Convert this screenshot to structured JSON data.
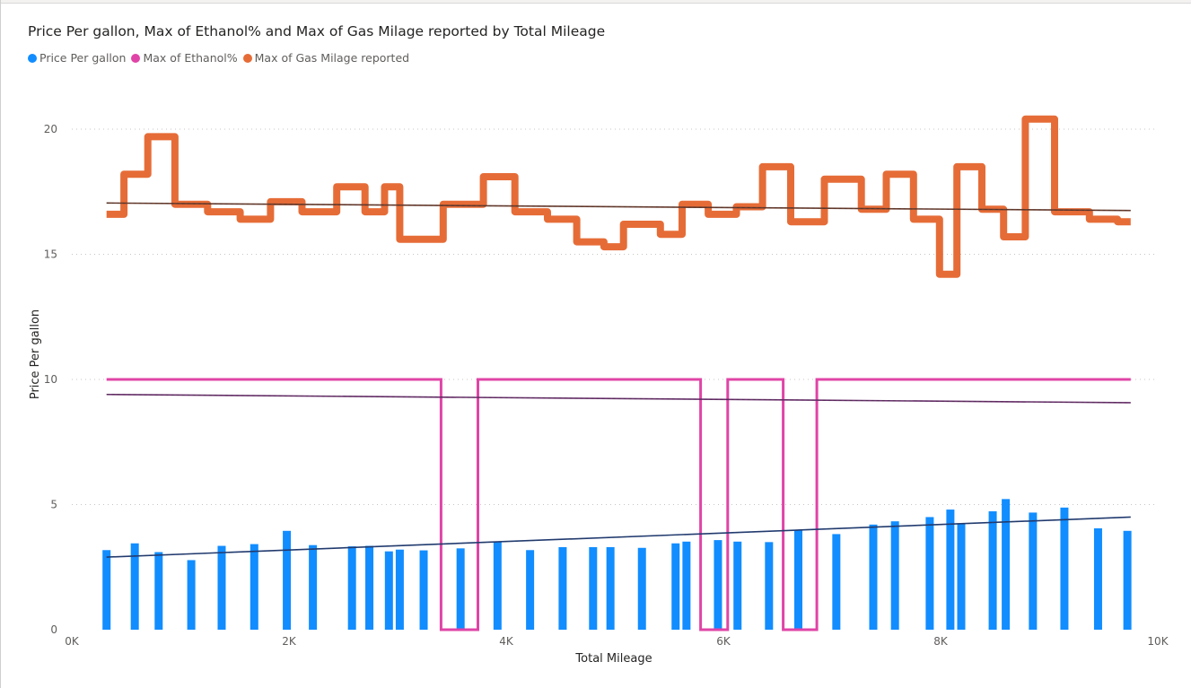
{
  "chart_data": {
    "type": "combo",
    "title": "Price Per gallon, Max of Ethanol% and Max of Gas Milage reported by Total Mileage",
    "xlabel": "Total Mileage",
    "ylabel": "Price Per gallon",
    "xlim": [
      0,
      10000
    ],
    "ylim": [
      0,
      22
    ],
    "x_ticks": [
      {
        "value": 0,
        "label": "0K"
      },
      {
        "value": 2000,
        "label": "2K"
      },
      {
        "value": 4000,
        "label": "4K"
      },
      {
        "value": 6000,
        "label": "6K"
      },
      {
        "value": 8000,
        "label": "8K"
      },
      {
        "value": 10000,
        "label": "10K"
      }
    ],
    "y_ticks": [
      {
        "value": 0,
        "label": "0"
      },
      {
        "value": 5,
        "label": "5"
      },
      {
        "value": 10,
        "label": "10"
      },
      {
        "value": 15,
        "label": "15"
      },
      {
        "value": 20,
        "label": "20"
      }
    ],
    "grid": true,
    "legend_position": "top-left",
    "series": [
      {
        "name": "Price Per gallon",
        "type": "bar",
        "color": "#118dff",
        "x": [
          320,
          580,
          800,
          1100,
          1380,
          1680,
          1980,
          2220,
          2580,
          2740,
          2920,
          3020,
          3240,
          3580,
          3920,
          4220,
          4520,
          4800,
          4960,
          5250,
          5560,
          5660,
          5950,
          6130,
          6420,
          6690,
          7040,
          7380,
          7580,
          7900,
          8090,
          8190,
          8480,
          8600,
          8850,
          9140,
          9450,
          9720
        ],
        "values": [
          3.18,
          3.45,
          3.1,
          2.78,
          3.35,
          3.42,
          3.95,
          3.38,
          3.33,
          3.35,
          3.13,
          3.2,
          3.17,
          3.25,
          3.5,
          3.18,
          3.3,
          3.3,
          3.3,
          3.27,
          3.45,
          3.52,
          3.58,
          3.52,
          3.5,
          3.97,
          3.82,
          4.2,
          4.33,
          4.5,
          4.8,
          4.25,
          4.73,
          5.22,
          4.68,
          4.88,
          4.05,
          3.95
        ]
      },
      {
        "name": "Max of Ethanol%",
        "type": "step-line",
        "color": "#e044a7",
        "points": [
          [
            320,
            10
          ],
          [
            3400,
            10
          ],
          [
            3400,
            0
          ],
          [
            3740,
            0
          ],
          [
            3740,
            10
          ],
          [
            5790,
            10
          ],
          [
            5790,
            0
          ],
          [
            6040,
            0
          ],
          [
            6040,
            10
          ],
          [
            6550,
            10
          ],
          [
            6550,
            0
          ],
          [
            6860,
            0
          ],
          [
            6860,
            10
          ],
          [
            9750,
            10
          ]
        ]
      },
      {
        "name": "Max of Gas Milage reported",
        "type": "step-line",
        "color": "#e66c37",
        "points": [
          [
            320,
            16.6
          ],
          [
            480,
            16.6
          ],
          [
            480,
            18.2
          ],
          [
            700,
            18.2
          ],
          [
            700,
            19.7
          ],
          [
            950,
            19.7
          ],
          [
            950,
            17.0
          ],
          [
            1250,
            17.0
          ],
          [
            1250,
            16.7
          ],
          [
            1550,
            16.7
          ],
          [
            1550,
            16.4
          ],
          [
            1830,
            16.4
          ],
          [
            1830,
            17.1
          ],
          [
            2120,
            17.1
          ],
          [
            2120,
            16.7
          ],
          [
            2440,
            16.7
          ],
          [
            2440,
            17.7
          ],
          [
            2700,
            17.7
          ],
          [
            2700,
            16.7
          ],
          [
            2880,
            16.7
          ],
          [
            2880,
            17.7
          ],
          [
            3020,
            17.7
          ],
          [
            3020,
            15.6
          ],
          [
            3420,
            15.6
          ],
          [
            3420,
            17.0
          ],
          [
            3790,
            17.0
          ],
          [
            3790,
            18.1
          ],
          [
            4080,
            18.1
          ],
          [
            4080,
            16.7
          ],
          [
            4380,
            16.7
          ],
          [
            4380,
            16.4
          ],
          [
            4650,
            16.4
          ],
          [
            4650,
            15.5
          ],
          [
            4900,
            15.5
          ],
          [
            4900,
            15.3
          ],
          [
            5080,
            15.3
          ],
          [
            5080,
            16.2
          ],
          [
            5420,
            16.2
          ],
          [
            5420,
            15.8
          ],
          [
            5620,
            15.8
          ],
          [
            5620,
            17.0
          ],
          [
            5860,
            17.0
          ],
          [
            5860,
            16.6
          ],
          [
            6120,
            16.6
          ],
          [
            6120,
            16.9
          ],
          [
            6360,
            16.9
          ],
          [
            6360,
            18.5
          ],
          [
            6620,
            18.5
          ],
          [
            6620,
            16.3
          ],
          [
            6930,
            16.3
          ],
          [
            6930,
            18.0
          ],
          [
            7270,
            18.0
          ],
          [
            7270,
            16.8
          ],
          [
            7500,
            16.8
          ],
          [
            7500,
            18.2
          ],
          [
            7750,
            18.2
          ],
          [
            7750,
            16.4
          ],
          [
            7990,
            16.4
          ],
          [
            7990,
            14.2
          ],
          [
            8150,
            14.2
          ],
          [
            8150,
            18.5
          ],
          [
            8380,
            18.5
          ],
          [
            8380,
            16.8
          ],
          [
            8580,
            16.8
          ],
          [
            8580,
            15.7
          ],
          [
            8780,
            15.7
          ],
          [
            8780,
            20.4
          ],
          [
            9050,
            20.4
          ],
          [
            9050,
            16.7
          ],
          [
            9370,
            16.7
          ],
          [
            9370,
            16.4
          ],
          [
            9630,
            16.4
          ],
          [
            9630,
            16.3
          ],
          [
            9750,
            16.3
          ]
        ]
      }
    ],
    "trend_lines": [
      {
        "series": "Price Per gallon",
        "color": "#1f3d7a",
        "from": [
          320,
          2.9
        ],
        "to": [
          9750,
          4.5
        ]
      },
      {
        "series": "Max of Ethanol%",
        "color": "#6b2c6e",
        "from": [
          320,
          9.4
        ],
        "to": [
          9750,
          9.07
        ]
      },
      {
        "series": "Max of Gas Milage reported",
        "color": "#6b3a2a",
        "from": [
          320,
          17.05
        ],
        "to": [
          9750,
          16.75
        ]
      }
    ]
  }
}
